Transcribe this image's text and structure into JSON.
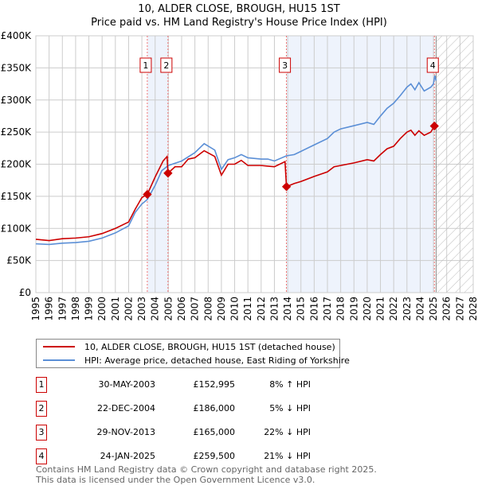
{
  "chart_data": {
    "type": "line",
    "title": "10, ALDER CLOSE, BROUGH, HU15 1ST",
    "subtitle": "Price paid vs. HM Land Registry's House Price Index (HPI)",
    "xlabel": "",
    "ylabel": "",
    "xlim": [
      1995,
      2028
    ],
    "ylim": [
      0,
      400000
    ],
    "x_ticks": [
      "1995",
      "1996",
      "1997",
      "1998",
      "1999",
      "2000",
      "2001",
      "2002",
      "2003",
      "2004",
      "2005",
      "2006",
      "2007",
      "2008",
      "2009",
      "2010",
      "2011",
      "2012",
      "2013",
      "2014",
      "2015",
      "2016",
      "2017",
      "2018",
      "2019",
      "2020",
      "2021",
      "2022",
      "2023",
      "2024",
      "2025",
      "2026",
      "2027",
      "2028"
    ],
    "y_ticks": [
      {
        "v": 0,
        "label": "£0"
      },
      {
        "v": 50000,
        "label": "£50K"
      },
      {
        "v": 100000,
        "label": "£100K"
      },
      {
        "v": 150000,
        "label": "£150K"
      },
      {
        "v": 200000,
        "label": "£200K"
      },
      {
        "v": 250000,
        "label": "£250K"
      },
      {
        "v": 300000,
        "label": "£300K"
      },
      {
        "v": 350000,
        "label": "£350K"
      },
      {
        "v": 400000,
        "label": "£400K"
      }
    ],
    "grid": true,
    "forecast_from": 2025.2,
    "series": [
      {
        "name": "10, ALDER CLOSE, BROUGH, HU15 1ST (detached house)",
        "color": "#cc0000",
        "x": [
          1995,
          1996,
          1997,
          1998,
          1999,
          2000,
          2001,
          2002,
          2002.5,
          2003,
          2003.41,
          2004,
          2004.6,
          2004.9,
          2004.97,
          2005.5,
          2006,
          2006.5,
          2007,
          2007.7,
          2008.5,
          2009,
          2009.5,
          2010,
          2010.5,
          2011,
          2012,
          2012.5,
          2013,
          2013.8,
          2013.91,
          2014.5,
          2015,
          2016,
          2017,
          2017.5,
          2018,
          2019,
          2020,
          2020.5,
          2021,
          2021.5,
          2022,
          2022.5,
          2023,
          2023.3,
          2023.6,
          2023.9,
          2024.3,
          2024.8,
          2025.07,
          2025.2
        ],
        "values": [
          83000,
          81000,
          84000,
          85000,
          87000,
          92000,
          100000,
          110000,
          130000,
          148000,
          152995,
          180000,
          205000,
          212000,
          186000,
          196000,
          196000,
          208000,
          210000,
          221000,
          212000,
          183000,
          200000,
          200000,
          206000,
          198000,
          198000,
          197000,
          196000,
          204000,
          165000,
          170000,
          173000,
          181000,
          188000,
          196000,
          198000,
          202000,
          207000,
          205000,
          215000,
          224000,
          228000,
          240000,
          250000,
          253000,
          245000,
          252000,
          245000,
          250000,
          259500,
          262000
        ]
      },
      {
        "name": "HPI: Average price, detached house, East Riding of Yorkshire",
        "color": "#5b8fd6",
        "x": [
          1995,
          1996,
          1997,
          1998,
          1999,
          2000,
          2001,
          2002,
          2002.5,
          2003,
          2003.41,
          2004,
          2004.5,
          2005,
          2006,
          2007,
          2007.7,
          2008.5,
          2009,
          2009.5,
          2010,
          2010.5,
          2011,
          2012,
          2012.5,
          2013,
          2013.9,
          2014.5,
          2015,
          2016,
          2017,
          2017.5,
          2018,
          2019,
          2020,
          2020.5,
          2021,
          2021.5,
          2022,
          2022.5,
          2023,
          2023.3,
          2023.6,
          2023.9,
          2024.3,
          2024.8,
          2025.0,
          2025.1,
          2025.2
        ],
        "values": [
          76000,
          75000,
          77000,
          78000,
          80000,
          85000,
          93000,
          104000,
          125000,
          138000,
          145000,
          167000,
          190000,
          198000,
          205000,
          218000,
          232000,
          222000,
          192000,
          207000,
          210000,
          215000,
          210000,
          208000,
          208000,
          205000,
          213000,
          215000,
          220000,
          230000,
          240000,
          250000,
          255000,
          260000,
          265000,
          262000,
          275000,
          287000,
          295000,
          307000,
          320000,
          325000,
          316000,
          327000,
          314000,
          320000,
          325000,
          338000,
          330000
        ]
      }
    ],
    "sales": [
      {
        "n": "1",
        "x": 2003.41,
        "value": 152995,
        "date": "30-MAY-2003",
        "price": "£152,995",
        "hpi": "8% ↑ HPI"
      },
      {
        "n": "2",
        "x": 2004.97,
        "value": 186000,
        "date": "22-DEC-2004",
        "price": "£186,000",
        "hpi": "5% ↓ HPI"
      },
      {
        "n": "3",
        "x": 2013.91,
        "value": 165000,
        "date": "29-NOV-2013",
        "price": "£165,000",
        "hpi": "22% ↓ HPI"
      },
      {
        "n": "4",
        "x": 2025.07,
        "value": 259500,
        "date": "24-JAN-2025",
        "price": "£259,500",
        "hpi": "21% ↓ HPI"
      }
    ],
    "shaded_ranges": [
      [
        2003.41,
        2004.97
      ],
      [
        2013.91,
        2025.07
      ]
    ],
    "legend_position": "below"
  },
  "footer": {
    "line1": "Contains HM Land Registry data © Crown copyright and database right 2025.",
    "line2": "This data is licensed under the Open Government Licence v3.0."
  }
}
